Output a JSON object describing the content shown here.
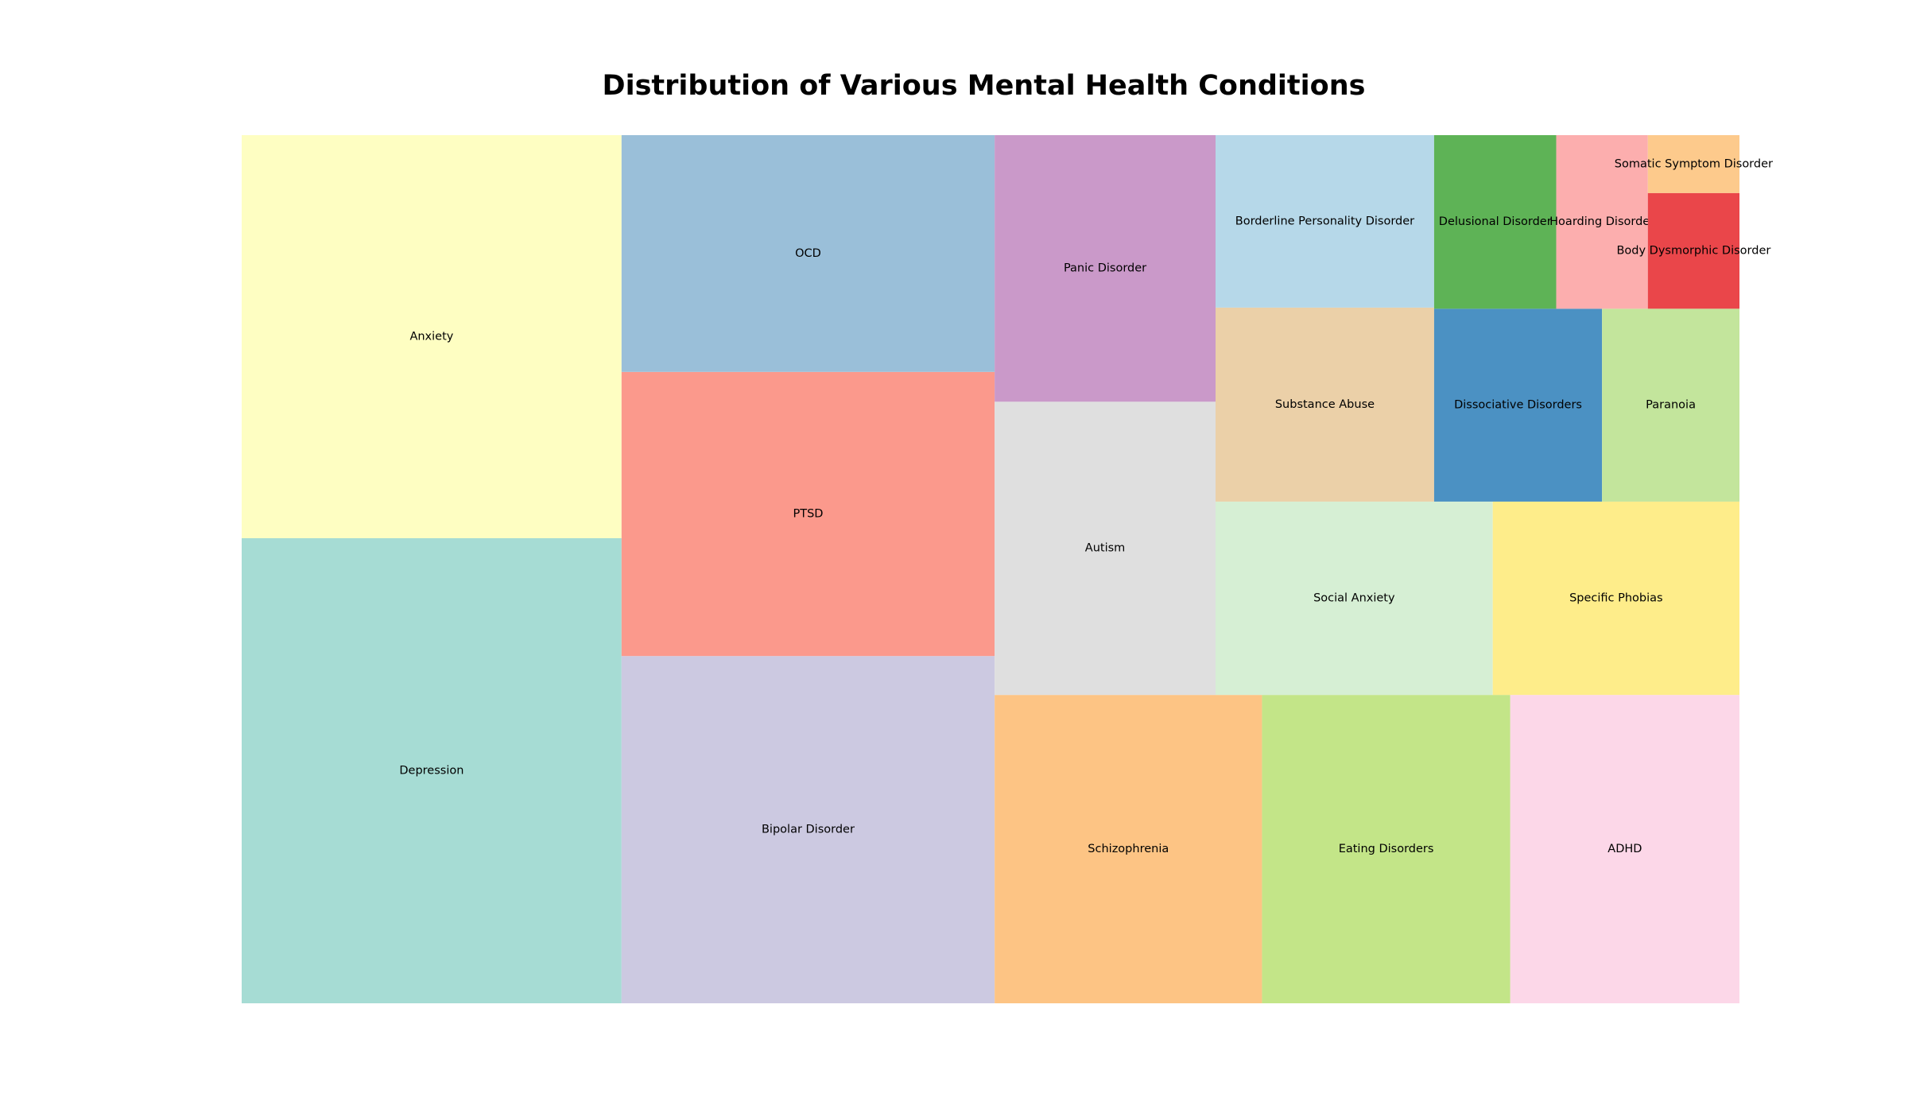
{
  "chart_data": {
    "type": "treemap",
    "title": "Distribution of Various Mental Health Conditions",
    "xlabel": "",
    "ylabel": "",
    "grid": false,
    "legend": "none",
    "items": [
      {
        "label": "Depression",
        "value": 30,
        "color": "#a6dcd4"
      },
      {
        "label": "Anxiety",
        "value": 26,
        "color": "#fefec2"
      },
      {
        "label": "Bipolar Disorder",
        "value": 22,
        "color": "#ccc9e1"
      },
      {
        "label": "PTSD",
        "value": 18,
        "color": "#fb998c"
      },
      {
        "label": "OCD",
        "value": 15,
        "color": "#9abfd9"
      },
      {
        "label": "Schizophrenia",
        "value": 14,
        "color": "#fdc484"
      },
      {
        "label": "Eating Disorders",
        "value": 13,
        "color": "#c3e588"
      },
      {
        "label": "ADHD",
        "value": 12,
        "color": "#fcd7e8"
      },
      {
        "label": "Autism",
        "value": 11,
        "color": "#dfdfdf"
      },
      {
        "label": "Panic Disorder",
        "value": 10,
        "color": "#ca99c9"
      },
      {
        "label": "Social Anxiety",
        "value": 9.1,
        "color": "#d6efd4"
      },
      {
        "label": "Specific Phobias",
        "value": 8.1,
        "color": "#feed8a"
      },
      {
        "label": "Borderline Personality Disorder",
        "value": 6.4,
        "color": "#b6d8e9"
      },
      {
        "label": "Substance Abuse",
        "value": 7.2,
        "color": "#ebd0a8"
      },
      {
        "label": "Dissociative Disorders",
        "value": 5.5,
        "color": "#4b91c3"
      },
      {
        "label": "Paranoia",
        "value": 4.5,
        "color": "#c3e59c"
      },
      {
        "label": "Delusional Disorder",
        "value": 3.6,
        "color": "#5eb356"
      },
      {
        "label": "Hoarding Disorder",
        "value": 2.7,
        "color": "#fcaeae"
      },
      {
        "label": "Somatic Symptom Disorder",
        "value": 0.9,
        "color": "#fdca8c"
      },
      {
        "label": "Body Dysmorphic Disorder",
        "value": 1.8,
        "color": "#ea464a"
      }
    ]
  }
}
